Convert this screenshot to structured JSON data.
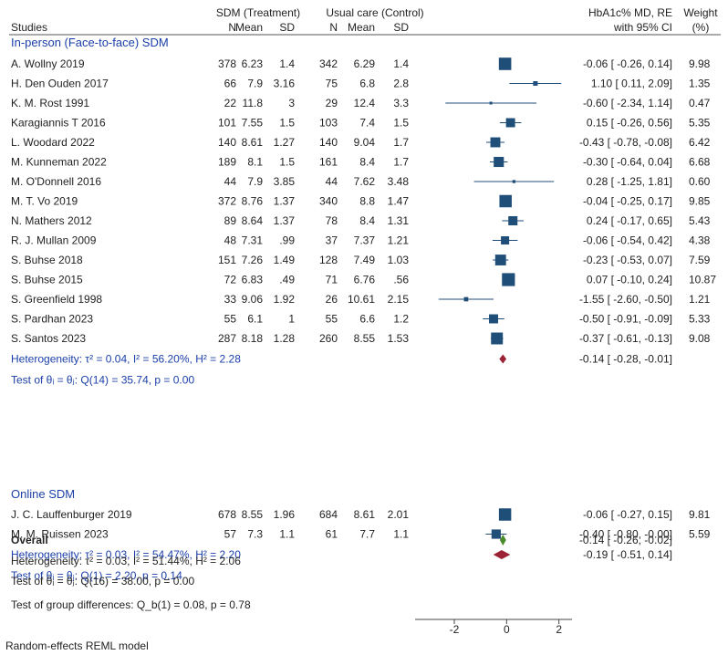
{
  "chart_data": {
    "type": "forest",
    "effect_label": [
      "HbA1c% MD, RE",
      "with 95% CI"
    ],
    "weight_label": [
      "Weight",
      "(%)"
    ],
    "column_groups": {
      "treatment": "SDM (Treatment)",
      "control": "Usual care (Control)"
    },
    "columns": {
      "studies": "Studies",
      "n": "N",
      "mean": "Mean",
      "sd": "SD"
    },
    "x_ticks": [
      "-2",
      "0",
      "2"
    ],
    "xlim": [
      -3.5,
      2.5
    ],
    "footnote": "Random-effects REML model",
    "groups": [
      {
        "name": "In-person (Face-to-face) SDM",
        "studies": [
          {
            "study": "A. Wollny 2019",
            "tn": "378",
            "tm": "6.23",
            "tsd": "1.4",
            "cn": "342",
            "cm": "6.29",
            "csd": "1.4",
            "ci_text": "-0.06 [ -0.26,  0.14]",
            "md": -0.06,
            "lo": -0.26,
            "hi": 0.14,
            "weight": "9.98",
            "w": 9.98
          },
          {
            "study": "H. Den Ouden 2017",
            "tn": "66",
            "tm": "7.9",
            "tsd": "3.16",
            "cn": "75",
            "cm": "6.8",
            "csd": "2.8",
            "ci_text": "1.10 [  0.11,  2.09]",
            "md": 1.1,
            "lo": 0.11,
            "hi": 2.09,
            "weight": "1.35",
            "w": 1.35
          },
          {
            "study": "K. M. Rost 1991",
            "tn": "22",
            "tm": "11.8",
            "tsd": "3",
            "cn": "29",
            "cm": "12.4",
            "csd": "3.3",
            "ci_text": "-0.60 [ -2.34,  1.14]",
            "md": -0.6,
            "lo": -2.34,
            "hi": 1.14,
            "weight": "0.47",
            "w": 0.47
          },
          {
            "study": "Karagiannis T 2016",
            "tn": "101",
            "tm": "7.55",
            "tsd": "1.5",
            "cn": "103",
            "cm": "7.4",
            "csd": "1.5",
            "ci_text": "0.15 [ -0.26,  0.56]",
            "md": 0.15,
            "lo": -0.26,
            "hi": 0.56,
            "weight": "5.35",
            "w": 5.35
          },
          {
            "study": "L. Woodard 2022",
            "tn": "140",
            "tm": "8.61",
            "tsd": "1.27",
            "cn": "140",
            "cm": "9.04",
            "csd": "1.7",
            "ci_text": "-0.43 [ -0.78, -0.08]",
            "md": -0.43,
            "lo": -0.78,
            "hi": -0.08,
            "weight": "6.42",
            "w": 6.42
          },
          {
            "study": "M. Kunneman 2022",
            "tn": "189",
            "tm": "8.1",
            "tsd": "1.5",
            "cn": "161",
            "cm": "8.4",
            "csd": "1.7",
            "ci_text": "-0.30 [ -0.64,  0.04]",
            "md": -0.3,
            "lo": -0.64,
            "hi": 0.04,
            "weight": "6.68",
            "w": 6.68
          },
          {
            "study": "M. O'Donnell 2016",
            "tn": "44",
            "tm": "7.9",
            "tsd": "3.85",
            "cn": "44",
            "cm": "7.62",
            "csd": "3.48",
            "ci_text": "0.28 [ -1.25,  1.81]",
            "md": 0.28,
            "lo": -1.25,
            "hi": 1.81,
            "weight": "0.60",
            "w": 0.6
          },
          {
            "study": "M. T. Vo 2019",
            "tn": "372",
            "tm": "8.76",
            "tsd": "1.37",
            "cn": "340",
            "cm": "8.8",
            "csd": "1.47",
            "ci_text": "-0.04 [ -0.25,  0.17]",
            "md": -0.04,
            "lo": -0.25,
            "hi": 0.17,
            "weight": "9.85",
            "w": 9.85
          },
          {
            "study": "N. Mathers 2012",
            "tn": "89",
            "tm": "8.64",
            "tsd": "1.37",
            "cn": "78",
            "cm": "8.4",
            "csd": "1.31",
            "ci_text": "0.24 [ -0.17,  0.65]",
            "md": 0.24,
            "lo": -0.17,
            "hi": 0.65,
            "weight": "5.43",
            "w": 5.43
          },
          {
            "study": "R. J. Mullan 2009",
            "tn": "48",
            "tm": "7.31",
            "tsd": ".99",
            "cn": "37",
            "cm": "7.37",
            "csd": "1.21",
            "ci_text": "-0.06 [ -0.54,  0.42]",
            "md": -0.06,
            "lo": -0.54,
            "hi": 0.42,
            "weight": "4.38",
            "w": 4.38
          },
          {
            "study": "S. Buhse 2018",
            "tn": "151",
            "tm": "7.26",
            "tsd": "1.49",
            "cn": "128",
            "cm": "7.49",
            "csd": "1.03",
            "ci_text": "-0.23 [ -0.53,  0.07]",
            "md": -0.23,
            "lo": -0.53,
            "hi": 0.07,
            "weight": "7.59",
            "w": 7.59
          },
          {
            "study": "S. Buhse 2015",
            "tn": "72",
            "tm": "6.83",
            "tsd": ".49",
            "cn": "71",
            "cm": "6.76",
            "csd": ".56",
            "ci_text": "0.07 [ -0.10,  0.24]",
            "md": 0.07,
            "lo": -0.1,
            "hi": 0.24,
            "weight": "10.87",
            "w": 10.87
          },
          {
            "study": "S. Greenfield 1998",
            "tn": "33",
            "tm": "9.06",
            "tsd": "1.92",
            "cn": "26",
            "cm": "10.61",
            "csd": "2.15",
            "ci_text": "-1.55 [ -2.60, -0.50]",
            "md": -1.55,
            "lo": -2.6,
            "hi": -0.5,
            "weight": "1.21",
            "w": 1.21
          },
          {
            "study": "S. Pardhan 2023",
            "tn": "55",
            "tm": "6.1",
            "tsd": "1",
            "cn": "55",
            "cm": "6.6",
            "csd": "1.2",
            "ci_text": "-0.50 [ -0.91, -0.09]",
            "md": -0.5,
            "lo": -0.91,
            "hi": -0.09,
            "weight": "5.33",
            "w": 5.33
          },
          {
            "study": "S. Santos 2023",
            "tn": "287",
            "tm": "8.18",
            "tsd": "1.28",
            "cn": "260",
            "cm": "8.55",
            "csd": "1.53",
            "ci_text": "-0.37 [ -0.61, -0.13]",
            "md": -0.37,
            "lo": -0.61,
            "hi": -0.13,
            "weight": "9.08",
            "w": 9.08
          }
        ],
        "heterogeneity": "Heterogeneity: τ² = 0.04, I² = 56.20%, H² = 2.28",
        "test": "Test of θᵢ = θⱼ: Q(14) = 35.74, p = 0.00",
        "pooled": {
          "ci_text": "-0.14 [ -0.28, -0.01]",
          "md": -0.14,
          "lo": -0.28,
          "hi": -0.01
        }
      },
      {
        "name": "Online SDM",
        "studies": [
          {
            "study": "J. C. Lauffenburger 2019",
            "tn": "678",
            "tm": "8.55",
            "tsd": "1.96",
            "cn": "684",
            "cm": "8.61",
            "csd": "2.01",
            "ci_text": "-0.06 [ -0.27,  0.15]",
            "md": -0.06,
            "lo": -0.27,
            "hi": 0.15,
            "weight": "9.81",
            "w": 9.81
          },
          {
            "study": "M. M. Ruissen 2023",
            "tn": "57",
            "tm": "7.3",
            "tsd": "1.1",
            "cn": "61",
            "cm": "7.7",
            "csd": "1.1",
            "ci_text": "-0.40 [ -0.80, -0.00]",
            "md": -0.4,
            "lo": -0.8,
            "hi": -0.0,
            "weight": "5.59",
            "w": 5.59
          }
        ],
        "heterogeneity": "Heterogeneity: τ² = 0.03, I² = 54.47%, H² = 2.20",
        "test": "Test of θᵢ = θⱼ: Q(1) = 2.20, p = 0.14",
        "pooled": {
          "ci_text": "-0.19 [ -0.51,  0.14]",
          "md": -0.19,
          "lo": -0.51,
          "hi": 0.14
        }
      }
    ],
    "overall": {
      "label": "Overall",
      "ci_text": "-0.14 [ -0.26, -0.02]",
      "md": -0.14,
      "lo": -0.26,
      "hi": -0.02,
      "heterogeneity": "Heterogeneity: τ² = 0.03, I² = 51.44%, H² = 2.06",
      "test": "Test of θᵢ = θⱼ: Q(16) = 38.00, p = 0.00",
      "group_test": "Test of group differences: Q_b(1) = 0.08, p = 0.78"
    },
    "colors": {
      "study": "#1f4e79",
      "subgroup_diamond": "#9b2335",
      "overall_diamond": "#4a8a2a",
      "group_text": "#1a3fa8"
    }
  }
}
